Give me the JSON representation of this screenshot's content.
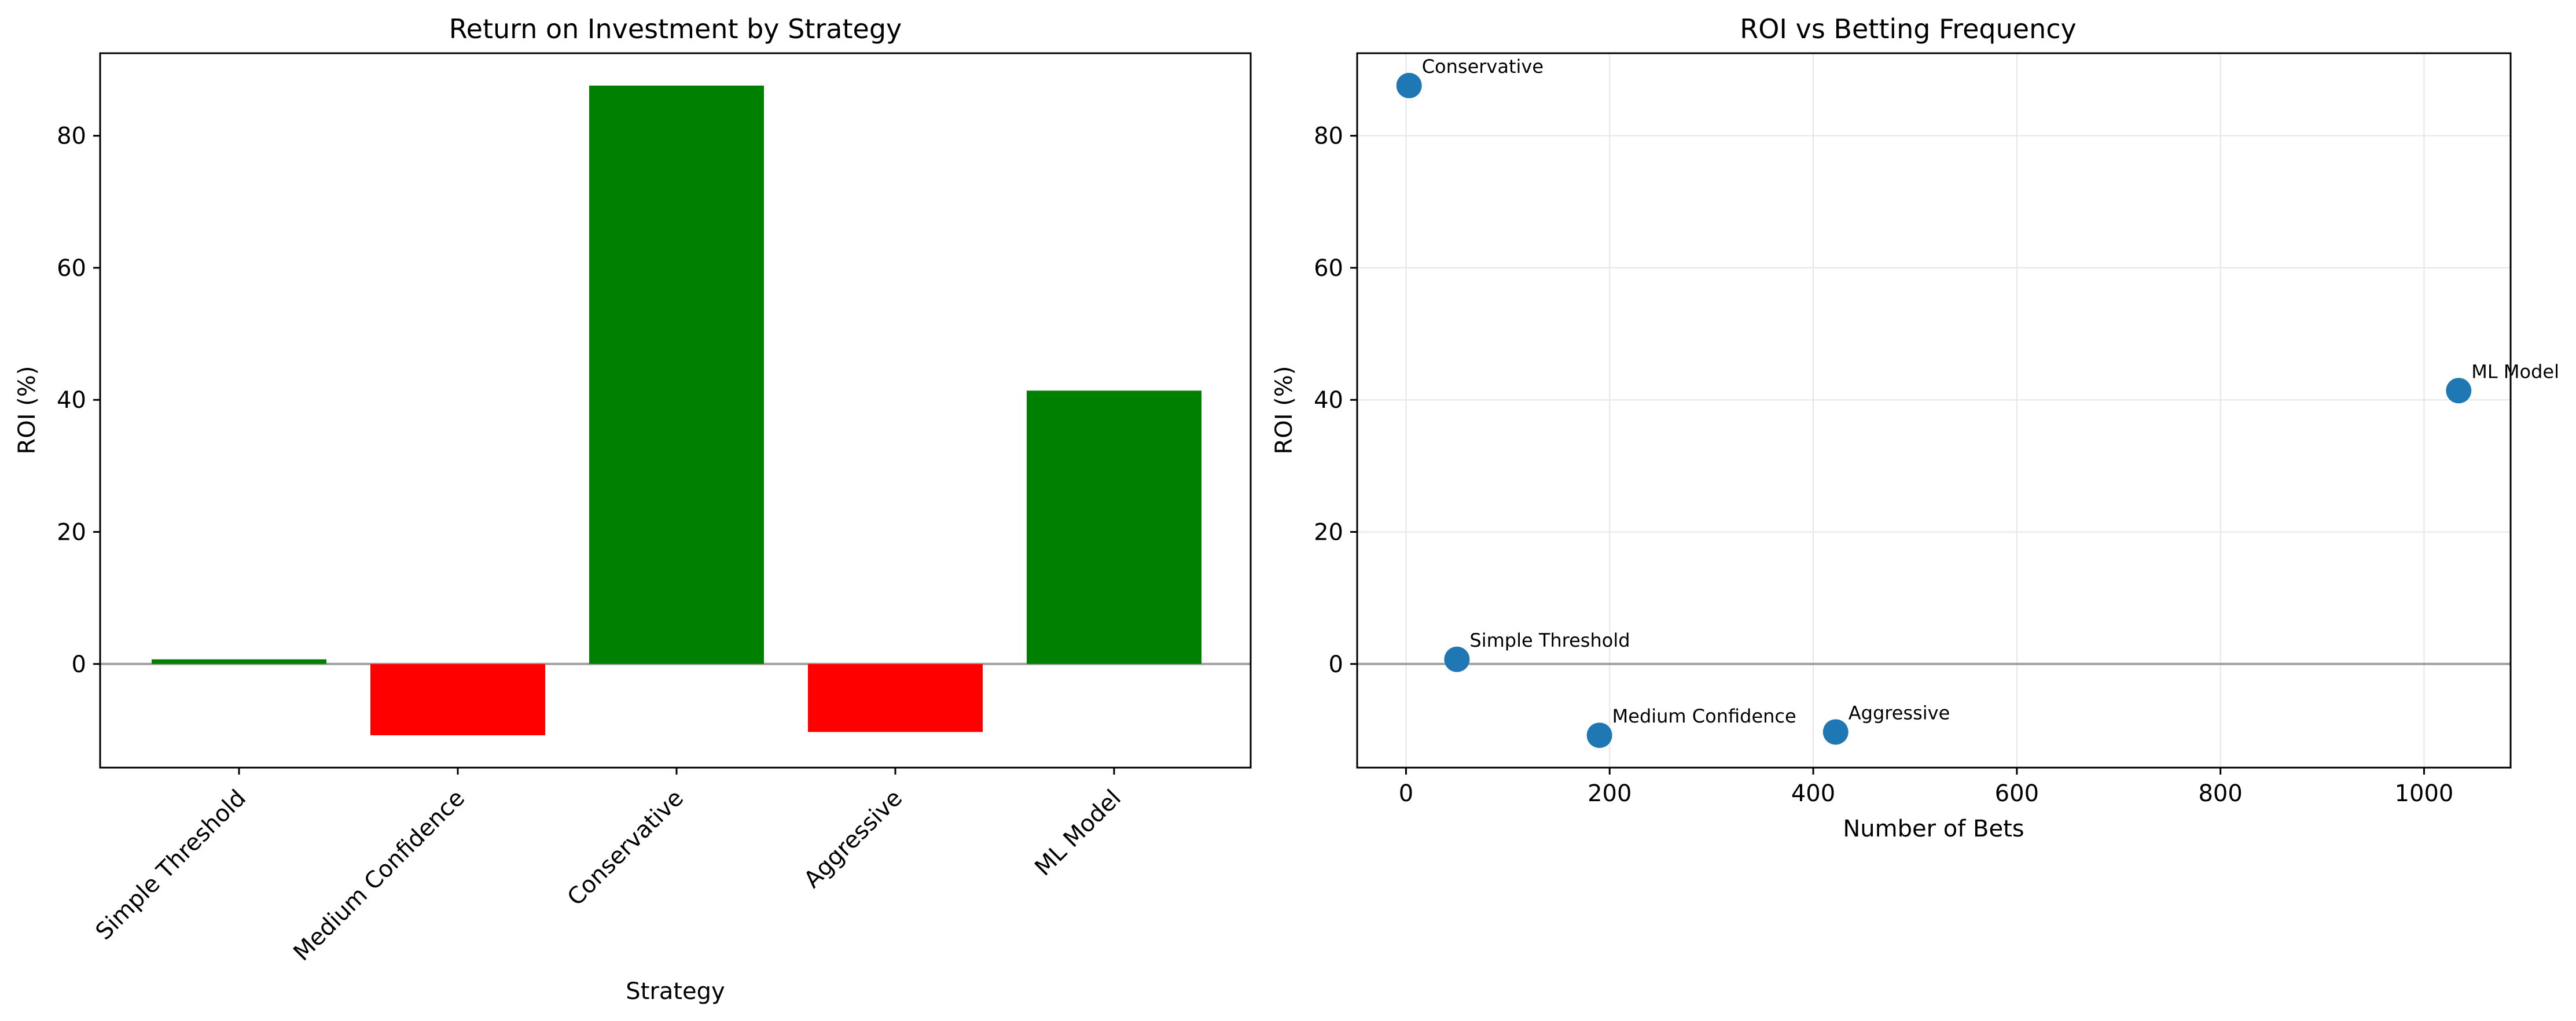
{
  "chart_data": [
    {
      "type": "bar",
      "title": "Return on Investment by Strategy",
      "xlabel": "Strategy",
      "ylabel": "ROI (%)",
      "categories": [
        "Simple Threshold",
        "Medium Confidence",
        "Conservative",
        "Aggressive",
        "ML Model"
      ],
      "values": [
        0.7,
        -10.8,
        87.6,
        -10.3,
        41.4
      ],
      "ylim": [
        -15.7,
        92.5
      ],
      "yticks": [
        0,
        20,
        40,
        60,
        80
      ],
      "bar_colors": [
        "#008000",
        "#ff0000",
        "#008000",
        "#ff0000",
        "#008000"
      ],
      "zero_line": true,
      "grid": false
    },
    {
      "type": "scatter",
      "title": "ROI vs Betting Frequency",
      "xlabel": "Number of Bets",
      "ylabel": "ROI (%)",
      "points": [
        {
          "label": "Simple Threshold",
          "x": 50,
          "y": 0.7
        },
        {
          "label": "Medium Confidence",
          "x": 190,
          "y": -10.8
        },
        {
          "label": "Conservative",
          "x": 3,
          "y": 87.6
        },
        {
          "label": "Aggressive",
          "x": 422,
          "y": -10.3
        },
        {
          "label": "ML Model",
          "x": 1034,
          "y": 41.4
        }
      ],
      "xlim": [
        -48,
        1085
      ],
      "ylim": [
        -15.7,
        92.5
      ],
      "xticks": [
        0,
        200,
        400,
        600,
        800,
        1000
      ],
      "yticks": [
        0,
        20,
        40,
        60,
        80
      ],
      "marker_color": "#1f77b4",
      "zero_line": true,
      "grid": true
    }
  ],
  "colors": {
    "axis": "#000000",
    "zero_line": "#a0a0a0",
    "grid": "#e6e6e6"
  }
}
